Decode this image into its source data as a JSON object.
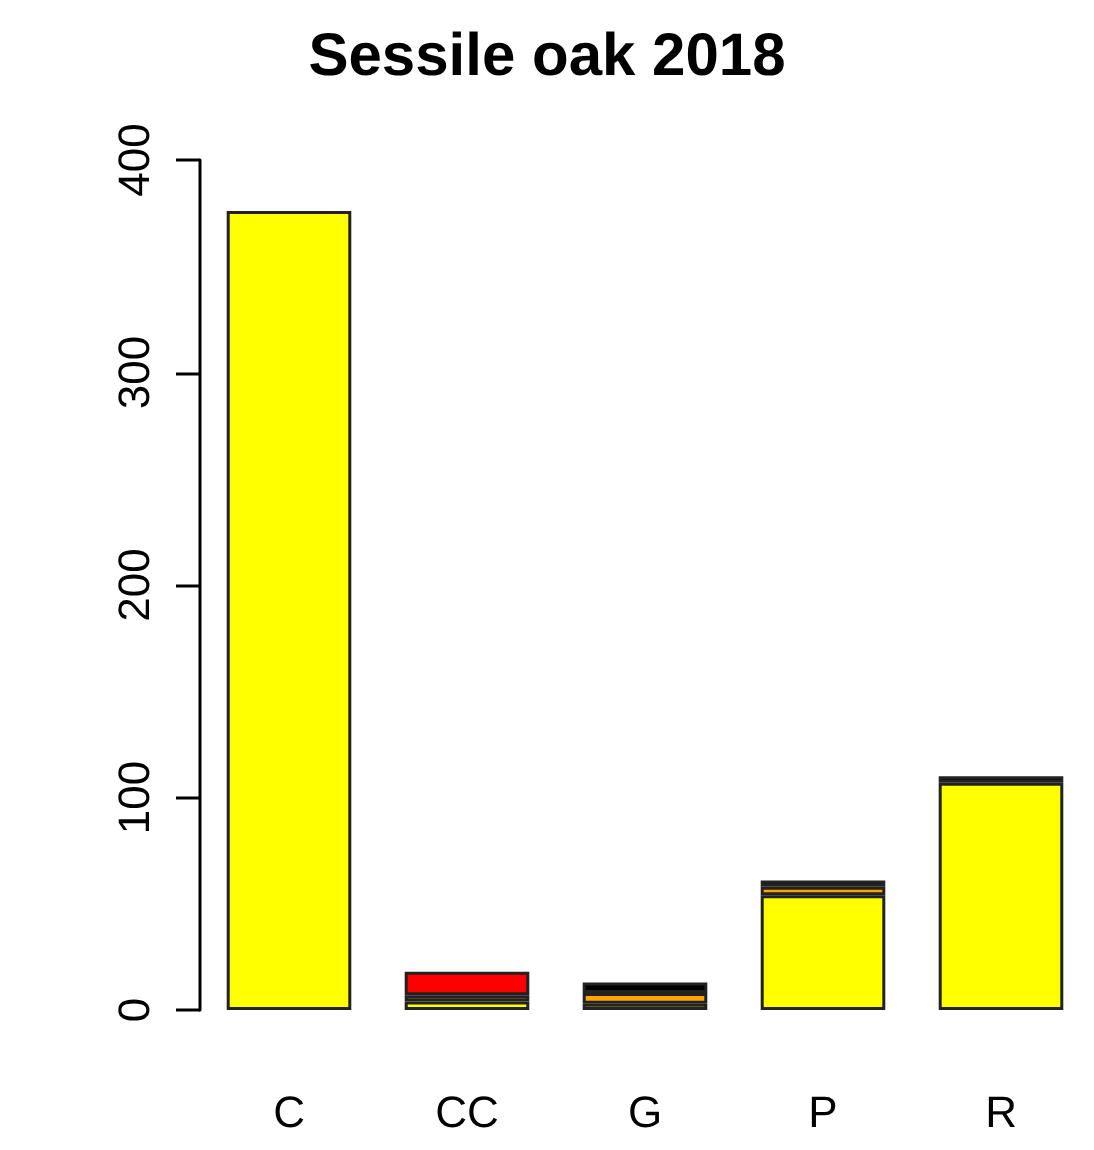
{
  "chart_data": {
    "type": "bar",
    "title": "Sessile oak 2018",
    "categories": [
      "C",
      "CC",
      "G",
      "P",
      "R"
    ],
    "stacked": true,
    "ylim": [
      0,
      400
    ],
    "yticks": [
      0,
      100,
      200,
      300,
      400
    ],
    "grid": false,
    "series": [
      {
        "color": "#ffff00",
        "values": [
          376,
          4,
          3,
          54,
          107
        ]
      },
      {
        "color": "#ffa500",
        "values": [
          null,
          3,
          5,
          4,
          null
        ]
      },
      {
        "color": "#ff0000",
        "values": [
          null,
          11,
          null,
          null,
          null
        ]
      },
      {
        "color": "#000000",
        "values": [
          null,
          null,
          5,
          3,
          3
        ]
      }
    ]
  }
}
